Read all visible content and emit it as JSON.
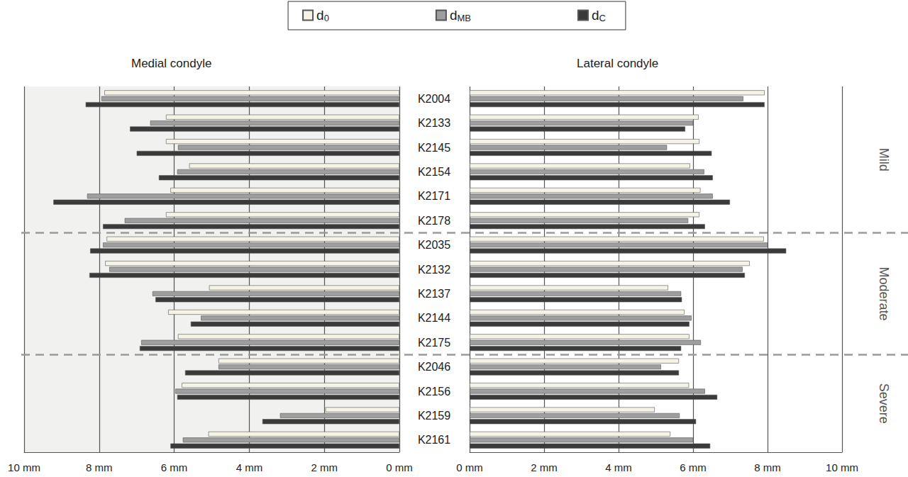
{
  "chart_data": [
    {
      "type": "bar",
      "title": "Medial condyle",
      "orientation": "horizontal",
      "grid": true,
      "tick_labels": "x",
      "legend": "top",
      "categories": [
        "K2004",
        "K2133",
        "K2145",
        "K2154",
        "K2171",
        "K2178",
        "K2035",
        "K2132",
        "K2137",
        "K2144",
        "K2175",
        "K2046",
        "K2156",
        "K2159",
        "K2161"
      ],
      "xlim": [
        10,
        0
      ],
      "xticks": [
        {
          "value": 0,
          "label": "0 mm"
        },
        {
          "value": 2,
          "label": "2 mm"
        },
        {
          "value": 4,
          "label": "4 mm"
        },
        {
          "value": 6,
          "label": "6 mm"
        },
        {
          "value": 8,
          "label": "8 mm"
        },
        {
          "value": 10,
          "label": "10 mm"
        }
      ],
      "series": [
        {
          "name": "d0",
          "color": "#f5f2e6",
          "values": [
            7.86,
            6.22,
            6.22,
            5.6,
            6.1,
            6.22,
            7.8,
            7.84,
            5.07,
            6.16,
            5.9,
            4.82,
            5.8,
            1.97,
            5.09
          ]
        },
        {
          "name": "dMB",
          "color": "#9e9e9e",
          "values": [
            7.94,
            6.64,
            5.9,
            5.92,
            8.32,
            7.32,
            7.9,
            7.73,
            6.58,
            5.29,
            6.88,
            4.82,
            5.97,
            3.18,
            5.77
          ]
        },
        {
          "name": "dC",
          "color": "#3a3a3a",
          "values": [
            8.36,
            7.18,
            7.0,
            6.41,
            9.22,
            7.9,
            8.24,
            8.26,
            6.5,
            5.56,
            6.92,
            5.71,
            5.92,
            3.65,
            6.1
          ]
        }
      ]
    },
    {
      "type": "bar",
      "title": "Lateral condyle",
      "orientation": "horizontal",
      "grid": true,
      "categories": [
        "K2004",
        "K2133",
        "K2145",
        "K2154",
        "K2171",
        "K2178",
        "K2035",
        "K2132",
        "K2137",
        "K2144",
        "K2175",
        "K2046",
        "K2156",
        "K2159",
        "K2161"
      ],
      "xlim": [
        0,
        10
      ],
      "xticks": [
        {
          "value": 0,
          "label": "0 mm"
        },
        {
          "value": 2,
          "label": "2 mm"
        },
        {
          "value": 4,
          "label": "4 mm"
        },
        {
          "value": 6,
          "label": "6 mm"
        },
        {
          "value": 8,
          "label": "8 mm"
        },
        {
          "value": 10,
          "label": "10 mm"
        }
      ],
      "groups": [
        {
          "label": "Mild",
          "from": "K2004",
          "to": "K2178"
        },
        {
          "label": "Moderate",
          "from": "K2035",
          "to": "K2175"
        },
        {
          "label": "Severe",
          "from": "K2046",
          "to": "K2161"
        }
      ],
      "series": [
        {
          "name": "d0",
          "color": "#f5f2e6",
          "values": [
            7.92,
            6.15,
            6.17,
            5.92,
            6.2,
            6.17,
            7.9,
            7.52,
            5.33,
            5.77,
            5.9,
            5.62,
            5.89,
            4.97,
            5.39
          ]
        },
        {
          "name": "dMB",
          "color": "#9e9e9e",
          "values": [
            7.35,
            6.0,
            5.3,
            6.3,
            6.53,
            5.87,
            8.0,
            7.33,
            5.68,
            5.96,
            6.21,
            5.14,
            6.32,
            5.64,
            6.0
          ]
        },
        {
          "name": "dC",
          "color": "#3a3a3a",
          "values": [
            7.92,
            5.79,
            6.5,
            6.53,
            6.99,
            6.32,
            8.5,
            7.39,
            5.7,
            5.9,
            5.68,
            5.62,
            6.65,
            6.08,
            6.46
          ]
        }
      ]
    }
  ]
}
